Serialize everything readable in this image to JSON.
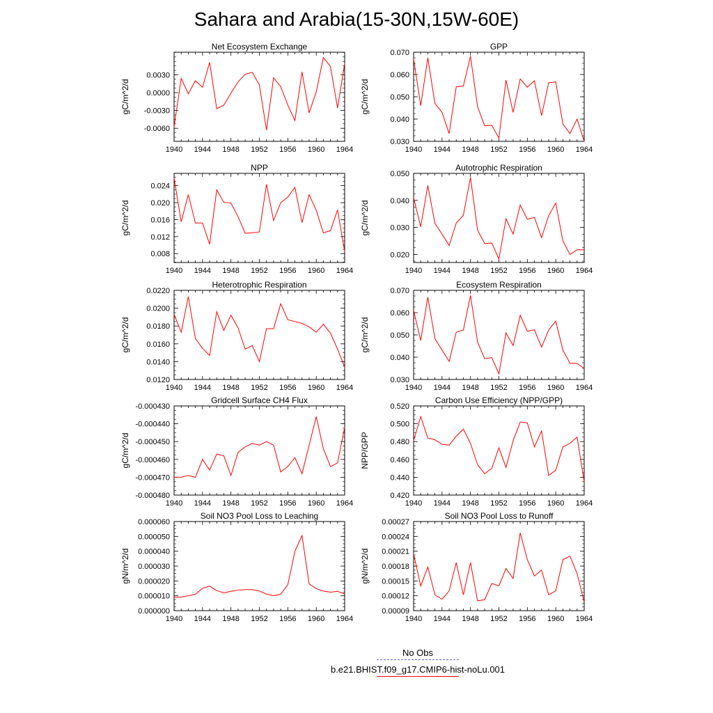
{
  "title": "Sahara and Arabia(15-30N,15W-60E)",
  "legend": {
    "entries": [
      {
        "label": "No Obs",
        "color": "#6666cc",
        "style": "dashed"
      },
      {
        "label": "b.e21.BHIST.f09_g17.CMIP6-hist-noLu.001",
        "color": "#ff0000",
        "style": "solid"
      }
    ]
  },
  "chart_data": [
    {
      "type": "line",
      "title": "Net Ecosystem Exchange",
      "ylabel": "gC/m^2/d",
      "xlim": [
        1940,
        1964
      ],
      "ylim": [
        -0.0082,
        0.0068
      ],
      "xticks": [
        "1940",
        "1944",
        "1948",
        "1952",
        "1956",
        "1960",
        "1964"
      ],
      "yticks": [
        "-0.0060",
        "-0.0030",
        "0.0000",
        "0.0030"
      ],
      "series": [
        {
          "color": "#ff0000",
          "x": [
            1940,
            1941,
            1942,
            1943,
            1944,
            1945,
            1946,
            1947,
            1948,
            1949,
            1950,
            1951,
            1952,
            1953,
            1954,
            1955,
            1956,
            1957,
            1958,
            1959,
            1960,
            1961,
            1962,
            1963,
            1964
          ],
          "values": [
            -0.0058,
            0.0024,
            -0.0002,
            0.002,
            0.0009,
            0.0051,
            -0.0027,
            -0.0021,
            -0.0001,
            0.0018,
            0.0031,
            0.0034,
            0.0013,
            -0.0063,
            0.0025,
            0.001,
            -0.0021,
            -0.0047,
            0.0035,
            -0.0034,
            0.0001,
            0.0059,
            0.0044,
            -0.0026,
            0.0049
          ]
        }
      ]
    },
    {
      "type": "line",
      "title": "GPP",
      "ylabel": "gC/m^2/d",
      "xlim": [
        1940,
        1964
      ],
      "ylim": [
        0.03,
        0.07
      ],
      "xticks": [
        "1940",
        "1944",
        "1948",
        "1952",
        "1956",
        "1960",
        "1964"
      ],
      "yticks": [
        "0.030",
        "0.040",
        "0.050",
        "0.060",
        "0.070"
      ],
      "series": [
        {
          "color": "#ff0000",
          "x": [
            1940,
            1941,
            1942,
            1943,
            1944,
            1945,
            1946,
            1947,
            1948,
            1949,
            1950,
            1951,
            1952,
            1953,
            1954,
            1955,
            1956,
            1957,
            1958,
            1959,
            1960,
            1961,
            1962,
            1963,
            1964
          ],
          "values": [
            0.067,
            0.046,
            0.0675,
            0.047,
            0.043,
            0.0335,
            0.0545,
            0.0548,
            0.0682,
            0.0455,
            0.037,
            0.0372,
            0.0315,
            0.0575,
            0.043,
            0.058,
            0.0543,
            0.0572,
            0.0415,
            0.0563,
            0.0567,
            0.0378,
            0.0335,
            0.04,
            0.0295
          ]
        }
      ]
    },
    {
      "type": "line",
      "title": "NPP",
      "ylabel": "gC/m^2/d",
      "xlim": [
        1940,
        1964
      ],
      "ylim": [
        0.0059,
        0.0269
      ],
      "xticks": [
        "1940",
        "1944",
        "1948",
        "1952",
        "1956",
        "1960",
        "1964"
      ],
      "yticks": [
        "0.008",
        "0.012",
        "0.016",
        "0.020",
        "0.024"
      ],
      "series": [
        {
          "color": "#ff0000",
          "x": [
            1940,
            1941,
            1942,
            1943,
            1944,
            1945,
            1946,
            1947,
            1948,
            1949,
            1950,
            1951,
            1952,
            1953,
            1954,
            1955,
            1956,
            1957,
            1958,
            1959,
            1960,
            1961,
            1962,
            1963,
            1964
          ],
          "values": [
            0.0258,
            0.0155,
            0.0219,
            0.0152,
            0.0152,
            0.0102,
            0.023,
            0.0201,
            0.0199,
            0.0167,
            0.0128,
            0.0129,
            0.0131,
            0.0243,
            0.0158,
            0.02,
            0.0213,
            0.0236,
            0.0153,
            0.0219,
            0.0182,
            0.0129,
            0.0134,
            0.0183,
            0.0085
          ]
        }
      ]
    },
    {
      "type": "line",
      "title": "Autotrophic Respiration",
      "ylabel": "gC/m^2/d",
      "xlim": [
        1940,
        1964
      ],
      "ylim": [
        0.017,
        0.05
      ],
      "xticks": [
        "1940",
        "1944",
        "1948",
        "1952",
        "1956",
        "1960",
        "1964"
      ],
      "yticks": [
        "0.020",
        "0.030",
        "0.040",
        "0.050"
      ],
      "series": [
        {
          "color": "#ff0000",
          "x": [
            1940,
            1941,
            1942,
            1943,
            1944,
            1945,
            1946,
            1947,
            1948,
            1949,
            1950,
            1951,
            1952,
            1953,
            1954,
            1955,
            1956,
            1957,
            1958,
            1959,
            1960,
            1961,
            1962,
            1963,
            1964
          ],
          "values": [
            0.041,
            0.0302,
            0.0455,
            0.0315,
            0.0275,
            0.0233,
            0.0316,
            0.0345,
            0.0485,
            0.029,
            0.024,
            0.0242,
            0.0183,
            0.0332,
            0.0275,
            0.0383,
            0.033,
            0.0337,
            0.0262,
            0.0343,
            0.039,
            0.025,
            0.02,
            0.0217,
            0.0217
          ]
        }
      ]
    },
    {
      "type": "line",
      "title": "Heterotrophic Respiration",
      "ylabel": "gC/m^2/d",
      "xlim": [
        1940,
        1964
      ],
      "ylim": [
        0.012,
        0.022
      ],
      "xticks": [
        "1940",
        "1944",
        "1948",
        "1952",
        "1956",
        "1960",
        "1964"
      ],
      "yticks": [
        "0.0120",
        "0.0140",
        "0.0160",
        "0.0180",
        "0.0200",
        "0.0220"
      ],
      "series": [
        {
          "color": "#ff0000",
          "x": [
            1940,
            1941,
            1942,
            1943,
            1944,
            1945,
            1946,
            1947,
            1948,
            1949,
            1950,
            1951,
            1952,
            1953,
            1954,
            1955,
            1956,
            1957,
            1958,
            1959,
            1960,
            1961,
            1962,
            1963,
            1964
          ],
          "values": [
            0.0193,
            0.0173,
            0.0213,
            0.0166,
            0.0155,
            0.0147,
            0.0196,
            0.0175,
            0.0192,
            0.0178,
            0.0154,
            0.0158,
            0.014,
            0.0177,
            0.0177,
            0.0205,
            0.0187,
            0.0185,
            0.0183,
            0.0179,
            0.0173,
            0.0182,
            0.0172,
            0.0154,
            0.0134
          ]
        }
      ]
    },
    {
      "type": "line",
      "title": "Ecosystem Respiration",
      "ylabel": "gC/m^2/d",
      "xlim": [
        1940,
        1964
      ],
      "ylim": [
        0.03,
        0.07
      ],
      "xticks": [
        "1940",
        "1944",
        "1948",
        "1952",
        "1956",
        "1960",
        "1964"
      ],
      "yticks": [
        "0.030",
        "0.040",
        "0.050",
        "0.060",
        "0.070"
      ],
      "series": [
        {
          "color": "#ff0000",
          "x": [
            1940,
            1941,
            1942,
            1943,
            1944,
            1945,
            1946,
            1947,
            1948,
            1949,
            1950,
            1951,
            1952,
            1953,
            1954,
            1955,
            1956,
            1957,
            1958,
            1959,
            1960,
            1961,
            1962,
            1963,
            1964
          ],
          "values": [
            0.061,
            0.0475,
            0.067,
            0.0483,
            0.0432,
            0.0381,
            0.0512,
            0.0522,
            0.0677,
            0.0468,
            0.0393,
            0.0398,
            0.0325,
            0.0509,
            0.0452,
            0.0588,
            0.0516,
            0.0523,
            0.0445,
            0.0522,
            0.0562,
            0.0432,
            0.0373,
            0.0372,
            0.035
          ]
        }
      ]
    },
    {
      "type": "line",
      "title": "Gridcell Surface CH4 Flux",
      "ylabel": "gC/m^2/d",
      "xlim": [
        1940,
        1964
      ],
      "ylim": [
        -0.00048,
        -0.00043
      ],
      "xticks": [
        "1940",
        "1944",
        "1948",
        "1952",
        "1956",
        "1960",
        "1964"
      ],
      "yticks": [
        "-0.000480",
        "-0.000470",
        "-0.000460",
        "-0.000450",
        "-0.000440",
        "-0.000430"
      ],
      "series": [
        {
          "color": "#ff0000",
          "x": [
            1940,
            1941,
            1942,
            1943,
            1944,
            1945,
            1946,
            1947,
            1948,
            1949,
            1950,
            1951,
            1952,
            1953,
            1954,
            1955,
            1956,
            1957,
            1958,
            1959,
            1960,
            1961,
            1962,
            1963,
            1964
          ],
          "values": [
            -0.00047,
            -0.00047,
            -0.000469,
            -0.00047,
            -0.00046,
            -0.000466,
            -0.000457,
            -0.000458,
            -0.000469,
            -0.000456,
            -0.000453,
            -0.000451,
            -0.000452,
            -0.00045,
            -0.000452,
            -0.000467,
            -0.000464,
            -0.000459,
            -0.000468,
            -0.000452,
            -0.000436,
            -0.000454,
            -0.000464,
            -0.000462,
            -0.000442
          ]
        }
      ]
    },
    {
      "type": "line",
      "title": "Carbon Use Efficiency (NPP/GPP)",
      "ylabel": "NPP/GPP",
      "xlim": [
        1940,
        1964
      ],
      "ylim": [
        0.42,
        0.52
      ],
      "xticks": [
        "1940",
        "1944",
        "1948",
        "1952",
        "1956",
        "1960",
        "1964"
      ],
      "yticks": [
        "0.420",
        "0.440",
        "0.460",
        "0.480",
        "0.500",
        "0.520"
      ],
      "series": [
        {
          "color": "#ff0000",
          "x": [
            1940,
            1941,
            1942,
            1943,
            1944,
            1945,
            1946,
            1947,
            1948,
            1949,
            1950,
            1951,
            1952,
            1953,
            1954,
            1955,
            1956,
            1957,
            1958,
            1959,
            1960,
            1961,
            1962,
            1963,
            1964
          ],
          "values": [
            0.481,
            0.508,
            0.484,
            0.482,
            0.477,
            0.476,
            0.486,
            0.494,
            0.478,
            0.454,
            0.444,
            0.45,
            0.473,
            0.451,
            0.481,
            0.502,
            0.501,
            0.474,
            0.492,
            0.442,
            0.448,
            0.474,
            0.478,
            0.485,
            0.435
          ]
        }
      ]
    },
    {
      "type": "line",
      "title": "Soil NO3 Pool Loss to Leaching",
      "ylabel": "gN/m^2/d",
      "xlim": [
        1940,
        1964
      ],
      "ylim": [
        0.0,
        6e-05
      ],
      "xticks": [
        "1940",
        "1944",
        "1948",
        "1952",
        "1956",
        "1960",
        "1964"
      ],
      "yticks": [
        "0.000000",
        "0.000010",
        "0.000020",
        "0.000030",
        "0.000040",
        "0.000050",
        "0.000060"
      ],
      "series": [
        {
          "color": "#ff0000",
          "x": [
            1940,
            1941,
            1942,
            1943,
            1944,
            1945,
            1946,
            1947,
            1948,
            1949,
            1950,
            1951,
            1952,
            1953,
            1954,
            1955,
            1956,
            1957,
            1958,
            1959,
            1960,
            1961,
            1962,
            1963,
            1964
          ],
          "values": [
            9e-06,
            9.2e-06,
            1e-05,
            1.1e-05,
            1.5e-05,
            1.65e-05,
            1.35e-05,
            1.2e-05,
            1.3e-05,
            1.38e-05,
            1.42e-05,
            1.42e-05,
            1.32e-05,
            1.12e-05,
            1e-05,
            1.1e-05,
            1.75e-05,
            4e-05,
            5.05e-05,
            1.8e-05,
            1.48e-05,
            1.32e-05,
            1.24e-05,
            1.3e-05,
            1.12e-05
          ]
        }
      ]
    },
    {
      "type": "line",
      "title": "Soil NO3 Pool Loss to Runoff",
      "ylabel": "gN/m^2/d",
      "xlim": [
        1940,
        1964
      ],
      "ylim": [
        9e-05,
        0.00027
      ],
      "xticks": [
        "1940",
        "1944",
        "1948",
        "1952",
        "1956",
        "1960",
        "1964"
      ],
      "yticks": [
        "0.00009",
        "0.00012",
        "0.00015",
        "0.00018",
        "0.00021",
        "0.00024",
        "0.00027"
      ],
      "series": [
        {
          "color": "#ff0000",
          "x": [
            1940,
            1941,
            1942,
            1943,
            1944,
            1945,
            1946,
            1947,
            1948,
            1949,
            1950,
            1951,
            1952,
            1953,
            1954,
            1955,
            1956,
            1957,
            1958,
            1959,
            1960,
            1961,
            1962,
            1963,
            1964
          ],
          "values": [
            0.000205,
            0.00014,
            0.000178,
            0.000122,
            0.000113,
            0.00013,
            0.000187,
            0.000122,
            0.000187,
            0.00011,
            0.000112,
            0.000145,
            0.00014,
            0.000175,
            0.000155,
            0.000247,
            0.000193,
            0.00016,
            0.000172,
            0.000122,
            0.00013,
            0.000193,
            0.0002,
            0.000165,
            0.000107
          ]
        }
      ]
    }
  ]
}
